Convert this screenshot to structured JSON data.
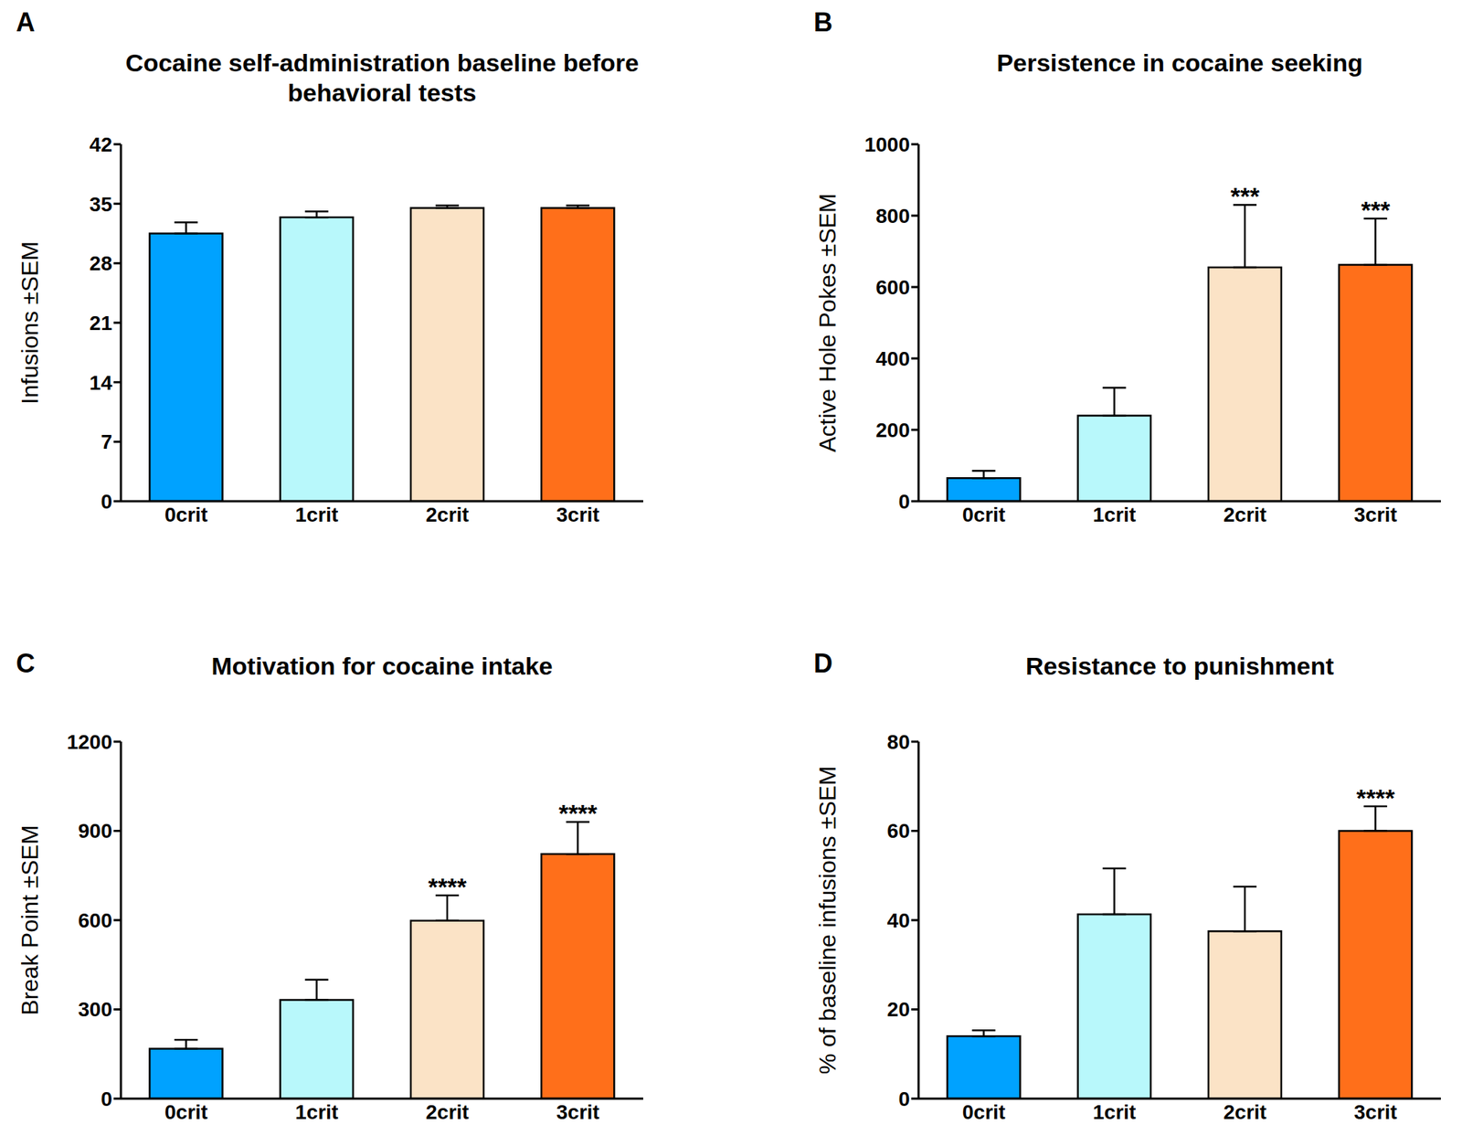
{
  "chart_data": [
    {
      "type": "bar",
      "panel_label": "A",
      "title": "Cocaine self-administration baseline before behavioral tests",
      "y_label": "Infusions ±SEM",
      "categories": [
        "0crit",
        "1crit",
        "2crit",
        "3crit"
      ],
      "values": [
        31.5,
        33.4,
        34.5,
        34.5
      ],
      "errors": [
        1.3,
        0.7,
        0.3,
        0.3
      ],
      "annotations": [
        null,
        null,
        null,
        null
      ],
      "colors": [
        "#00a2ff",
        "#b8f8fb",
        "#fbe3c6",
        "#ff6f1a"
      ],
      "ylim": [
        0,
        42
      ],
      "yticks": [
        0,
        7,
        14,
        21,
        28,
        35,
        42
      ]
    },
    {
      "type": "bar",
      "panel_label": "B",
      "title": "Persistence in cocaine seeking",
      "y_label": "Active Hole Pokes ±SEM",
      "categories": [
        "0crit",
        "1crit",
        "2crit",
        "3crit"
      ],
      "values": [
        65,
        240,
        655,
        662
      ],
      "errors": [
        20,
        78,
        175,
        130
      ],
      "annotations": [
        null,
        null,
        "***",
        "***"
      ],
      "colors": [
        "#00a2ff",
        "#b8f8fb",
        "#fbe3c6",
        "#ff6f1a"
      ],
      "ylim": [
        0,
        1000
      ],
      "yticks": [
        0,
        200,
        400,
        600,
        800,
        1000
      ]
    },
    {
      "type": "bar",
      "panel_label": "C",
      "title": "Motivation for cocaine intake",
      "y_label": "Break Point ±SEM",
      "categories": [
        "0crit",
        "1crit",
        "2crit",
        "3crit"
      ],
      "values": [
        168,
        332,
        598,
        822
      ],
      "errors": [
        30,
        68,
        85,
        108
      ],
      "annotations": [
        null,
        null,
        "****",
        "****"
      ],
      "colors": [
        "#00a2ff",
        "#b8f8fb",
        "#fbe3c6",
        "#ff6f1a"
      ],
      "ylim": [
        0,
        1200
      ],
      "yticks": [
        0,
        300,
        600,
        900,
        1200
      ]
    },
    {
      "type": "bar",
      "panel_label": "D",
      "title": "Resistance to punishment",
      "y_label": "% of baseline infusions ±SEM",
      "categories": [
        "0crit",
        "1crit",
        "2crit",
        "3crit"
      ],
      "values": [
        14,
        41.3,
        37.5,
        60
      ],
      "errors": [
        1.3,
        10.3,
        10,
        5.5
      ],
      "annotations": [
        null,
        null,
        null,
        "****"
      ],
      "colors": [
        "#00a2ff",
        "#b8f8fb",
        "#fbe3c6",
        "#ff6f1a"
      ],
      "ylim": [
        0,
        80
      ],
      "yticks": [
        0,
        20,
        40,
        60,
        80
      ]
    }
  ]
}
